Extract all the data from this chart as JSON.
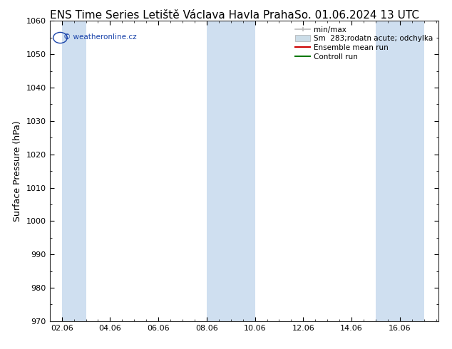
{
  "title_left": "ENS Time Series Letiště Václava Havla Praha",
  "title_right": "So. 01.06.2024 13 UTC",
  "ylabel": "Surface Pressure (hPa)",
  "ylim": [
    970,
    1060
  ],
  "yticks": [
    970,
    980,
    990,
    1000,
    1010,
    1020,
    1030,
    1040,
    1050,
    1060
  ],
  "xtick_labels": [
    "02.06",
    "04.06",
    "06.06",
    "08.06",
    "10.06",
    "12.06",
    "14.06",
    "16.06"
  ],
  "shaded_color": "#cfdff0",
  "background_color": "#ffffff",
  "watermark_text": "© weatheronline.cz",
  "watermark_color": "#1a44aa",
  "legend_minmax_color": "#bbbbbb",
  "legend_odchylka_color": "#ccdde8",
  "legend_ensemble_color": "#cc0000",
  "legend_control_color": "#007700",
  "title_fontsize": 11,
  "axis_label_fontsize": 9,
  "tick_fontsize": 8,
  "legend_fontsize": 7.5,
  "shaded_ranges_days": [
    [
      1.458,
      2.458
    ],
    [
      7.458,
      8.458
    ],
    [
      8.458,
      9.458
    ],
    [
      14.458,
      15.458
    ],
    [
      15.458,
      16.0
    ]
  ]
}
